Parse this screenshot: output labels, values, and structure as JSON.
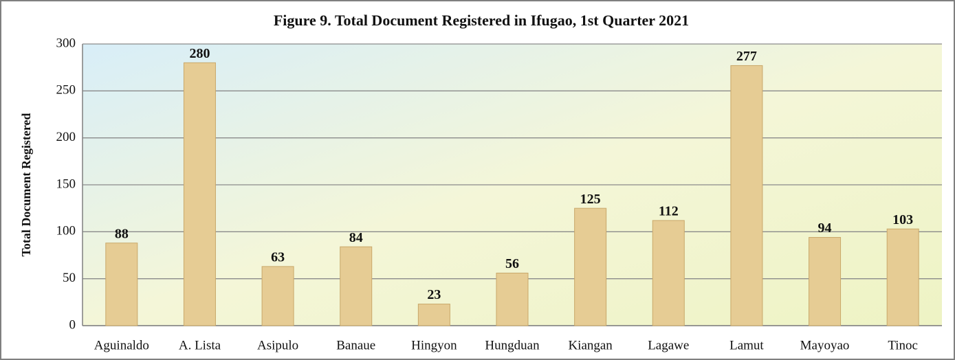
{
  "chart_data": {
    "type": "bar",
    "title": "Figure 9. Total Document Registered in Ifugao, 1st  Quarter 2021",
    "y_label": "Total Document Registered",
    "categories": [
      "Aguinaldo",
      "A. Lista",
      "Asipulo",
      "Banaue",
      "Hingyon",
      "Hungduan",
      "Kiangan",
      "Lagawe",
      "Lamut",
      "Mayoyao",
      "Tinoc"
    ],
    "values": [
      88,
      280,
      63,
      84,
      23,
      56,
      125,
      112,
      277,
      94,
      103
    ],
    "color": "#e6cc94",
    "ylim": [
      0,
      300
    ],
    "yticks": [
      0,
      50,
      100,
      150,
      200,
      250,
      300
    ],
    "grid": true
  }
}
